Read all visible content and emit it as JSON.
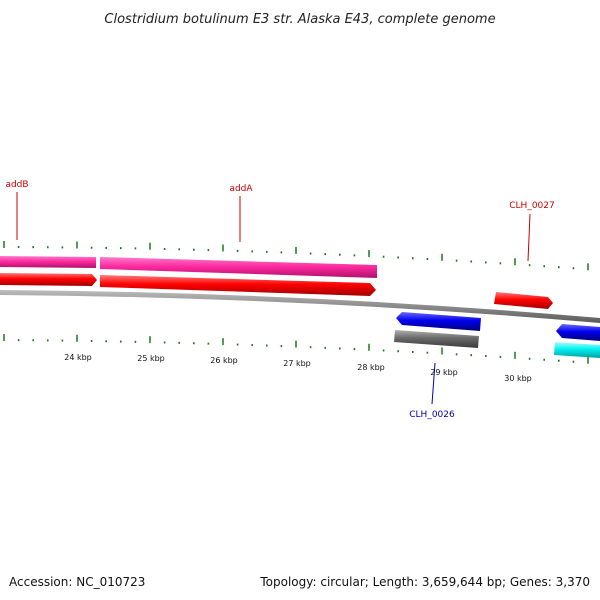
{
  "title": "Clostridium botulinum E3 str. Alaska E43, complete genome",
  "footer": {
    "accession": "Accession: NC_010723",
    "summary": "Topology: circular; Length: 3,659,644 bp; Genes: 3,370"
  },
  "scale": {
    "unit": "kbp",
    "labels": [
      "24 kbp",
      "25 kbp",
      "26 kbp",
      "27 kbp",
      "28 kbp",
      "29 kbp",
      "30 kbp"
    ]
  },
  "genes": [
    {
      "name": "addB",
      "color": "#cc0000"
    },
    {
      "name": "addA",
      "color": "#cc0000"
    },
    {
      "name": "CLH_0027",
      "color": "#cc0000"
    },
    {
      "name": "CLH_0026",
      "color": "#0000aa"
    }
  ],
  "feature_colors": {
    "pink_track": "#ff2aa0",
    "forward_cds": "#ff0000",
    "reverse_cds": "#0000ee",
    "grey_feature": "#6a6a6a",
    "cyan_feature": "#00f0f0",
    "backbone": "#8a8a8a",
    "ticks": "#1a7a1a",
    "label_red": "#cc0000",
    "label_blue": "#0000aa"
  }
}
